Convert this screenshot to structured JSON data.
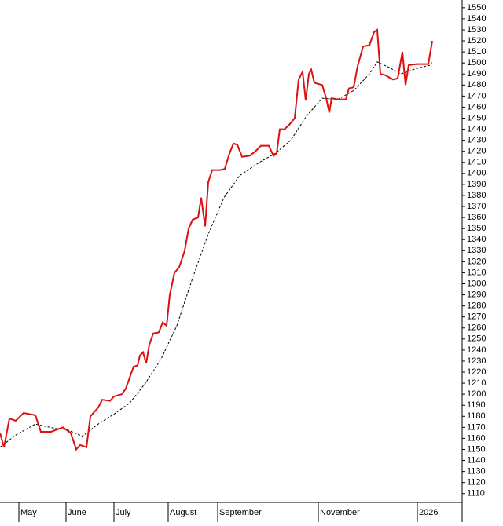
{
  "chart_data": {
    "type": "line",
    "xlim": [
      0,
      588
    ],
    "ylim": [
      1102,
      1557
    ],
    "xticks": [
      {
        "value": 24,
        "label": "May"
      },
      {
        "value": 84,
        "label": "June"
      },
      {
        "value": 145,
        "label": "July"
      },
      {
        "value": 214,
        "label": "August"
      },
      {
        "value": 277,
        "label": "September"
      },
      {
        "value": 405,
        "label": "November"
      },
      {
        "value": 531,
        "label": "2026"
      }
    ],
    "yticks": [
      1110,
      1120,
      1130,
      1140,
      1150,
      1160,
      1170,
      1180,
      1190,
      1200,
      1210,
      1220,
      1230,
      1240,
      1250,
      1260,
      1270,
      1280,
      1290,
      1300,
      1310,
      1320,
      1330,
      1340,
      1350,
      1360,
      1370,
      1380,
      1390,
      1400,
      1410,
      1420,
      1430,
      1440,
      1450,
      1460,
      1470,
      1480,
      1490,
      1500,
      1510,
      1520,
      1530,
      1540,
      1550
    ],
    "series": [
      {
        "color": "#dd1111",
        "dash": false,
        "x": [
          0,
          5,
          12,
          20,
          30,
          45,
          52,
          65,
          80,
          90,
          97,
          102,
          110,
          115,
          125,
          130,
          140,
          145,
          155,
          160,
          165,
          170,
          175,
          178,
          182,
          186,
          190,
          195,
          202,
          207,
          212,
          216,
          222,
          228,
          235,
          240,
          245,
          252,
          256,
          261,
          265,
          270,
          280,
          286,
          292,
          297,
          302,
          308,
          318,
          325,
          332,
          342,
          348,
          352,
          356,
          362,
          368,
          375,
          380,
          385,
          389,
          393,
          396,
          400,
          410,
          415,
          419,
          422,
          430,
          440,
          444,
          450,
          455,
          462,
          470,
          476,
          480,
          484,
          490,
          500,
          506,
          512,
          516,
          520,
          530,
          545,
          550
        ],
        "values": [
          1165,
          1152,
          1178,
          1176,
          1183,
          1181,
          1166,
          1166,
          1170,
          1165,
          1150,
          1154,
          1152,
          1180,
          1188,
          1195,
          1194,
          1198,
          1200,
          1205,
          1215,
          1225,
          1226,
          1235,
          1238,
          1228,
          1245,
          1255,
          1256,
          1265,
          1262,
          1290,
          1310,
          1315,
          1330,
          1350,
          1358,
          1360,
          1378,
          1352,
          1392,
          1403,
          1403,
          1404,
          1418,
          1427,
          1426,
          1415,
          1416,
          1420,
          1425,
          1425,
          1416,
          1418,
          1440,
          1440,
          1444,
          1450,
          1485,
          1492,
          1466,
          1490,
          1494,
          1482,
          1480,
          1468,
          1455,
          1468,
          1467,
          1467,
          1477,
          1478,
          1497,
          1515,
          1516,
          1528,
          1530,
          1490,
          1489,
          1485,
          1486,
          1510,
          1480,
          1498,
          1499,
          1499,
          1520
        ]
      },
      {
        "color": "#000000",
        "dash": true,
        "x": [
          0,
          20,
          45,
          70,
          85,
          105,
          125,
          145,
          165,
          185,
          205,
          225,
          245,
          265,
          285,
          305,
          330,
          350,
          370,
          390,
          410,
          430,
          450,
          470,
          480,
          495,
          510,
          530,
          548,
          550
        ],
        "values": [
          1152,
          1163,
          1173,
          1169,
          1168,
          1162,
          1173,
          1182,
          1192,
          1210,
          1232,
          1262,
          1305,
          1345,
          1378,
          1398,
          1410,
          1418,
          1430,
          1452,
          1468,
          1467,
          1475,
          1490,
          1501,
          1496,
          1490,
          1495,
          1498,
          1502
        ]
      }
    ]
  }
}
